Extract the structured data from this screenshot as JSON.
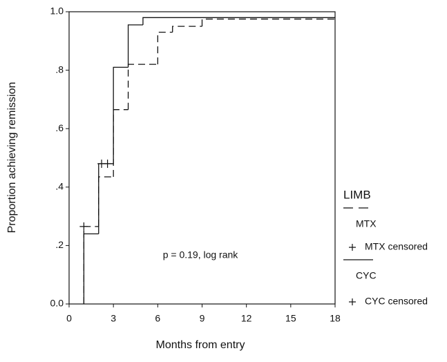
{
  "chart_data": {
    "type": "step",
    "annotation": "p = 0.19, log rank",
    "x_label": "Months from entry",
    "y_label": "Proportion achieving remission",
    "legend_title": "LIMB",
    "xlim": [
      0,
      18
    ],
    "xticks": [
      0,
      3,
      6,
      9,
      12,
      15,
      18
    ],
    "ylim": [
      0,
      1
    ],
    "yticks": [
      {
        "value": 0,
        "label": "0.0"
      },
      {
        "value": 0.2,
        "label": ".2"
      },
      {
        "value": 0.4,
        "label": ".4"
      },
      {
        "value": 0.6,
        "label": ".6"
      },
      {
        "value": 0.8,
        "label": ".8"
      },
      {
        "value": 1,
        "label": "1.0"
      }
    ],
    "series": [
      {
        "name": "MTX",
        "color": "#111111",
        "style": "dashed",
        "x": [
          1,
          2,
          3,
          4,
          6,
          7,
          9
        ],
        "values": [
          0.265,
          0.435,
          0.665,
          0.82,
          0.93,
          0.95,
          0.975
        ]
      },
      {
        "name": "MTX censored",
        "color": "#111111",
        "style": "censored",
        "x": [
          1
        ],
        "values": [
          0.265
        ]
      },
      {
        "name": "CYC",
        "color": "#111111",
        "style": "solid",
        "x": [
          1,
          2,
          3,
          4,
          5
        ],
        "values": [
          0.24,
          0.48,
          0.81,
          0.955,
          0.98
        ]
      },
      {
        "name": "CYC censored",
        "color": "#111111",
        "style": "censored",
        "x": [
          2.2,
          2.6
        ],
        "values": [
          0.48,
          0.48
        ]
      }
    ]
  }
}
